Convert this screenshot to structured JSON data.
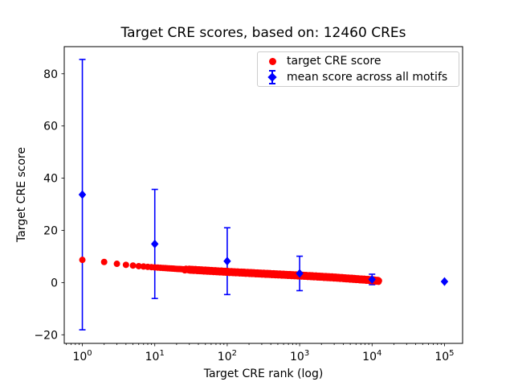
{
  "figure": {
    "background": "#ffffff",
    "frame_color": "#000000",
    "text_color": "#000000"
  },
  "chart_data": {
    "type": "scatter",
    "title": "Target CRE scores, based on: 12460 CREs",
    "xlabel": "Target CRE rank (log)",
    "ylabel": "Target CRE score",
    "xscale": "log",
    "xlim_log10": [
      -0.25,
      5.25
    ],
    "ylim": [
      -23.3,
      90.4
    ],
    "yticks": [
      -20,
      0,
      20,
      40,
      60,
      80
    ],
    "xticks": [
      {
        "value": 1,
        "base": "10",
        "exp": "0"
      },
      {
        "value": 10,
        "base": "10",
        "exp": "1"
      },
      {
        "value": 100,
        "base": "10",
        "exp": "2"
      },
      {
        "value": 1000,
        "base": "10",
        "exp": "3"
      },
      {
        "value": 10000,
        "base": "10",
        "exp": "4"
      },
      {
        "value": 100000,
        "base": "10",
        "exp": "5"
      }
    ],
    "grid": false,
    "legend_position": "upper right",
    "series": [
      {
        "name": "target CRE score",
        "color": "#ff0000",
        "marker": "circle",
        "marker_radius_px": 4,
        "n_total": 12460,
        "rank_range": [
          1,
          12460
        ],
        "score_curve_log10rank": [
          [
            0,
            8.7
          ],
          [
            0.301,
            7.9
          ],
          [
            0.477,
            7.2
          ],
          [
            0.602,
            6.8
          ],
          [
            0.778,
            6.3
          ],
          [
            1.0,
            5.8
          ],
          [
            1.5,
            4.9
          ],
          [
            2.0,
            4.1
          ],
          [
            2.5,
            3.4
          ],
          [
            3.0,
            2.7
          ],
          [
            3.5,
            1.9
          ],
          [
            4.0,
            0.9
          ],
          [
            4.0955,
            0.6
          ]
        ]
      },
      {
        "name": "mean score across all motifs",
        "color": "#0000ff",
        "marker": "diamond",
        "points": [
          {
            "x": 1,
            "y": 33.7,
            "yerr": 51.8
          },
          {
            "x": 10,
            "y": 14.8,
            "yerr": 20.9
          },
          {
            "x": 100,
            "y": 8.2,
            "yerr": 12.8
          },
          {
            "x": 1000,
            "y": 3.5,
            "yerr": 6.6
          },
          {
            "x": 10000,
            "y": 1.2,
            "yerr": 2.0
          },
          {
            "x": 100000,
            "y": 0.4,
            "yerr": 0
          }
        ]
      }
    ]
  }
}
